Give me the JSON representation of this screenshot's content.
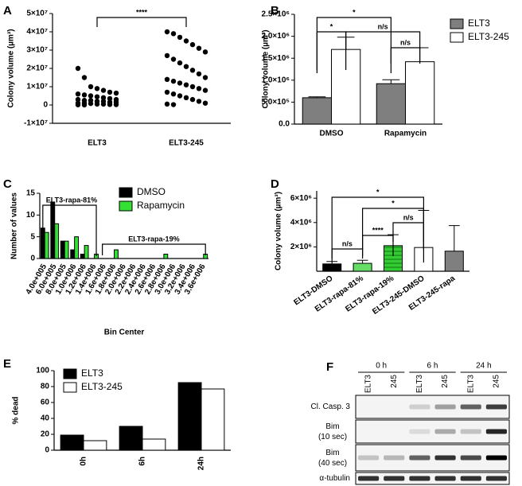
{
  "chart_data": [
    {
      "type": "scatter",
      "label": "A",
      "ylabel": "Colony volume (µm³)",
      "series": [
        {
          "name": "ELT3",
          "values": [
            20000000,
            15000000,
            10000000,
            9000000,
            8000000,
            7000000,
            6500000,
            6000000,
            5500000,
            5000000,
            4500000,
            4000000,
            3500000,
            3000000,
            3000000,
            2500000,
            2500000,
            2000000,
            2000000,
            1500000,
            1500000,
            1000000,
            1000000,
            800000,
            500000,
            500000,
            300000,
            200000,
            100000,
            50000
          ]
        },
        {
          "name": "ELT3-245",
          "values": [
            40000000,
            39000000,
            37000000,
            35000000,
            33000000,
            31000000,
            29000000,
            27000000,
            25000000,
            23000000,
            21000000,
            19000000,
            17000000,
            15000000,
            14000000,
            13000000,
            12000000,
            11000000,
            10000000,
            9000000,
            8000000,
            7000000,
            6000000,
            5000000,
            4000000,
            3000000,
            2000000,
            1000000,
            500000,
            200000
          ]
        }
      ],
      "color": "#000000",
      "annotations": [
        "****"
      ],
      "ylim": [
        -10000000,
        50000000
      ],
      "yticks": [
        {
          "value": -10000000,
          "label": "-1×10⁷"
        },
        0,
        {
          "value": 10000000,
          "label": "1×10⁷"
        },
        {
          "value": 20000000,
          "label": "2×10⁷"
        },
        {
          "value": 30000000,
          "label": "3×10⁷"
        },
        {
          "value": 40000000,
          "label": "4×10⁷"
        },
        {
          "value": 50000000,
          "label": "5×10⁷"
        }
      ]
    },
    {
      "type": "bar",
      "label": "B",
      "ylabel": "Colony volume (µm³)",
      "categories": [
        "DMSO",
        "Rapamycin"
      ],
      "series": [
        {
          "name": "ELT3",
          "color": "#7f7f7f",
          "values": [
            600000,
            920000
          ],
          "errors": [
            20000,
            90000
          ]
        },
        {
          "name": "ELT3-245",
          "color": "#ffffff",
          "values": [
            1700000,
            1420000
          ],
          "errors": [
            280000,
            320000
          ]
        }
      ],
      "annotations": [
        "*",
        "*",
        "n/s",
        "n/s"
      ],
      "legend": "right",
      "ylim": [
        0,
        2500000
      ],
      "yticks": [
        {
          "value": 0,
          "label": "0.0"
        },
        {
          "value": 500000,
          "label": "5.0×10⁵"
        },
        {
          "value": 1000000,
          "label": "1.0×10⁶"
        },
        {
          "value": 1500000,
          "label": "1.5×10⁶"
        },
        {
          "value": 2000000,
          "label": "2.0×10⁶"
        },
        {
          "value": 2500000,
          "label": "2.5×10⁶"
        }
      ]
    },
    {
      "type": "bar",
      "label": "C",
      "ylabel": "Number of values",
      "xlabel": "Bin Center",
      "categories": [
        "4.0e+005",
        "6.0e+005",
        "8.0e+005",
        "1.0e+006",
        "1.2e+006",
        "1.4e+006",
        "1.6e+006",
        "1.8e+006",
        "2.0e+006",
        "2.2e+006",
        "2.4e+006",
        "2.6e+006",
        "2.8e+006",
        "3.0e+006",
        "3.2e+006",
        "3.4e+006",
        "3.6e+006"
      ],
      "series": [
        {
          "name": "DMSO",
          "color": "#000000",
          "values": [
            7,
            13,
            4,
            2,
            1,
            0,
            0,
            0,
            0,
            0,
            0,
            0,
            0,
            0,
            0,
            0,
            0
          ]
        },
        {
          "name": "Rapamycin",
          "color": "#33e033",
          "values": [
            6,
            8,
            4,
            5,
            3,
            1,
            0,
            2,
            0,
            0,
            0,
            0,
            1,
            0,
            0,
            0,
            1
          ]
        }
      ],
      "annotations": [
        "ELT3-rapa-81%",
        "ELT3-rapa-19%"
      ],
      "legend": "top",
      "ylim": [
        0,
        15
      ],
      "yticks": [
        0,
        5,
        10,
        15
      ]
    },
    {
      "type": "bar",
      "label": "D",
      "ylabel": "Colony volume (µm³)",
      "categories": [
        "ELT3-DMSO",
        "ELT3-rapa-81%",
        "ELT3-rapa-19%",
        "ELT3-245-DMSO",
        "ELT3-245-rapa"
      ],
      "values": [
        600000,
        650000,
        2100000,
        1950000,
        1650000
      ],
      "errors": [
        200000,
        250000,
        900000,
        3050000,
        2100000
      ],
      "colors": [
        "#000000",
        "#66dd66",
        "#33cc33",
        "#ffffff",
        "#7f7f7f"
      ],
      "annotations": [
        "*",
        "*",
        "n/s",
        "****",
        "n/s"
      ],
      "ylim": [
        0,
        6600000
      ],
      "yticks": [
        {
          "value": 2000000,
          "label": "2×10⁶"
        },
        {
          "value": 4000000,
          "label": "4×10⁶"
        },
        {
          "value": 6000000,
          "label": "6×10⁶"
        }
      ]
    },
    {
      "type": "bar",
      "label": "E",
      "ylabel": "% dead",
      "categories": [
        "0h",
        "6h",
        "24h"
      ],
      "series": [
        {
          "name": "ELT3",
          "color": "#000000",
          "values": [
            19,
            30,
            85
          ]
        },
        {
          "name": "ELT3-245",
          "color": "#ffffff",
          "values": [
            12,
            14,
            77
          ]
        }
      ],
      "legend": "top",
      "ylim": [
        0,
        100
      ],
      "yticks": [
        0,
        20,
        40,
        60,
        80,
        100
      ]
    }
  ],
  "blot": {
    "label": "F",
    "time_points": [
      "0 h",
      "6 h",
      "24 h"
    ],
    "lanes": [
      "ELT3",
      "245",
      "ELT3",
      "245",
      "ELT3",
      "245"
    ],
    "rows": [
      {
        "name": "Cl. Casp. 3"
      },
      {
        "name": "Bim",
        "exposure": "(10 sec)"
      },
      {
        "name": "Bim",
        "exposure": "(40 sec)"
      },
      {
        "name": "α-tubulin"
      }
    ]
  }
}
